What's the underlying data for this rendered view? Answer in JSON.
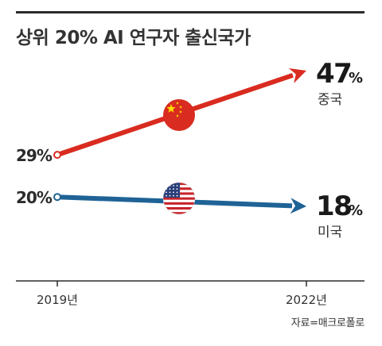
{
  "title": "상위 20% AI 연구자 출신국가",
  "source": "자료=매크로폴로",
  "chart_data": {
    "type": "line",
    "categories": [
      "2019년",
      "2022년"
    ],
    "series": [
      {
        "name": "중국",
        "values": [
          29,
          47
        ],
        "start_label": "29%",
        "end_value": "47",
        "end_unit": "%",
        "color": "#d92b1f",
        "icon": "china-flag-icon"
      },
      {
        "name": "미국",
        "values": [
          20,
          18
        ],
        "start_label": "20%",
        "end_value": "18",
        "end_unit": "%",
        "color": "#1f6396",
        "icon": "us-flag-icon"
      }
    ],
    "ylim": [
      10,
      50
    ],
    "grid": false,
    "legend": "none"
  }
}
